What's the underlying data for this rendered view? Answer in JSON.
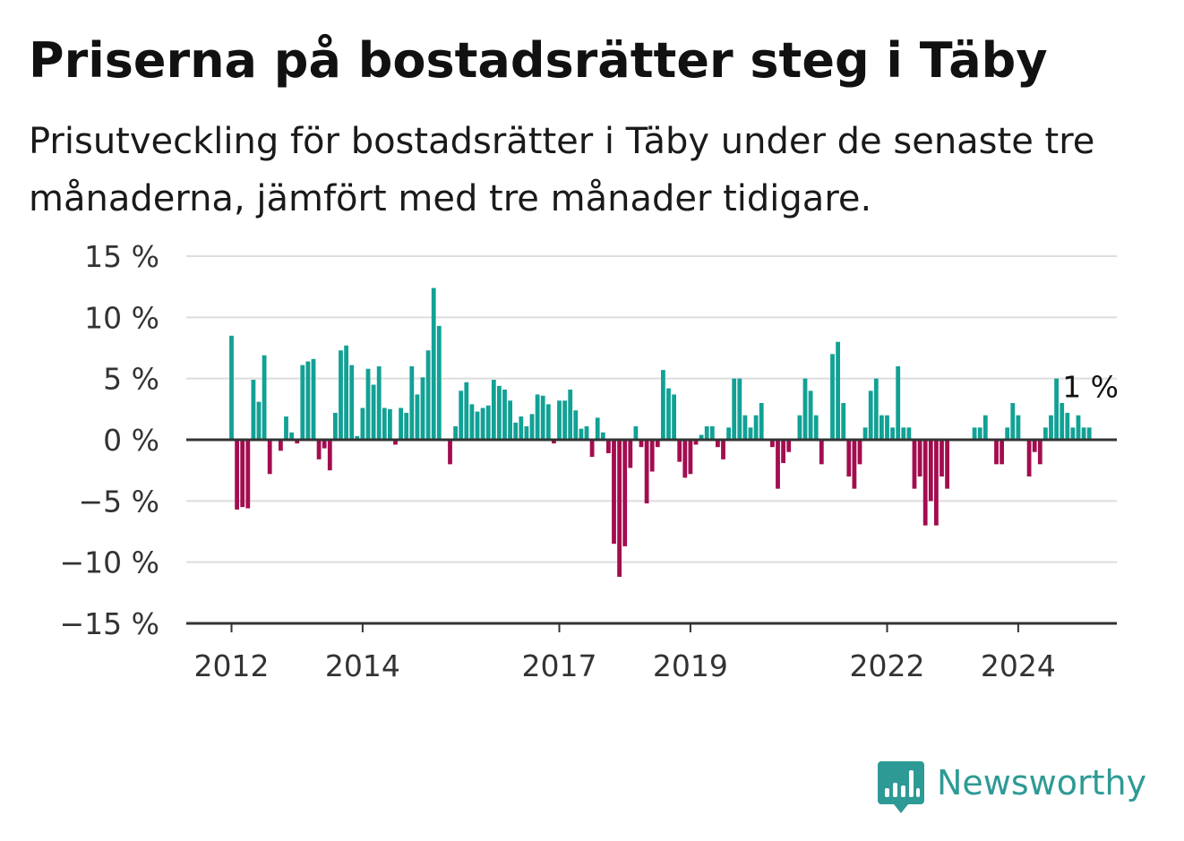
{
  "header": {
    "title": "Priserna på bostadsrätter steg i Täby",
    "subtitle": "Prisutveckling för bostadsrätter i Täby under de senaste tre månaderna, jämfört med tre månader tidigare."
  },
  "brand": {
    "name": "Newsworthy",
    "color": "#2e9a95"
  },
  "colors": {
    "positive": "#12a195",
    "negative": "#a30d4f",
    "grid": "#dddddd",
    "axis": "#333333",
    "text": "#333333"
  },
  "chart_data": {
    "type": "bar",
    "title": "Priserna på bostadsrätter steg i Täby",
    "xlabel": "",
    "ylabel": "",
    "ylim": [
      -15,
      15
    ],
    "yticks": [
      {
        "value": 15,
        "label": "15 %"
      },
      {
        "value": 10,
        "label": "10 %"
      },
      {
        "value": 5,
        "label": "5 %"
      },
      {
        "value": 0,
        "label": "0 %"
      },
      {
        "value": -5,
        "label": "−5 %"
      },
      {
        "value": -10,
        "label": "−10 %"
      },
      {
        "value": -15,
        "label": "−15 %"
      }
    ],
    "xticks": [
      {
        "index": 0,
        "label": "2012"
      },
      {
        "index": 24,
        "label": "2014"
      },
      {
        "index": 60,
        "label": "2017"
      },
      {
        "index": 84,
        "label": "2019"
      },
      {
        "index": 120,
        "label": "2022"
      },
      {
        "index": 144,
        "label": "2024"
      }
    ],
    "grid": true,
    "bar_color_rule": "positive values teal, negative values crimson",
    "last_value_label": "1 %",
    "start": "2012-01",
    "frequency": "monthly",
    "values": [
      8.5,
      -5.7,
      -5.5,
      -5.6,
      4.9,
      3.1,
      6.9,
      -2.8,
      0,
      -0.9,
      1.9,
      0.6,
      -0.3,
      6.1,
      6.4,
      6.6,
      -1.6,
      -0.7,
      -2.5,
      2.2,
      7.3,
      7.7,
      6.1,
      0.3,
      2.6,
      5.8,
      4.5,
      6.0,
      2.6,
      2.5,
      -0.4,
      2.6,
      2.2,
      6.0,
      3.7,
      5.1,
      7.3,
      12.4,
      9.3,
      0,
      -2.0,
      1.1,
      4.0,
      4.7,
      2.9,
      2.3,
      2.6,
      2.8,
      4.9,
      4.4,
      4.1,
      3.2,
      1.4,
      1.9,
      1.1,
      2.1,
      3.7,
      3.6,
      2.9,
      -0.3,
      3.2,
      3.2,
      4.1,
      2.4,
      0.9,
      1.1,
      -1.4,
      1.8,
      0.6,
      -1.1,
      -8.5,
      -11.2,
      -8.7,
      -2.3,
      1.1,
      -0.6,
      -5.2,
      -2.6,
      -0.6,
      5.7,
      4.2,
      3.7,
      -1.8,
      -3.1,
      -2.8,
      -0.4,
      0.4,
      1.1,
      1.1,
      -0.6,
      -1.6,
      1.0,
      5.0,
      5.0,
      2.0,
      1.0,
      2.0,
      3.0,
      0,
      -0.6,
      -4.0,
      -1.9,
      -1.0,
      0,
      2.0,
      5.0,
      4.0,
      2.0,
      -2.0,
      0,
      7.0,
      8.0,
      3.0,
      -3.0,
      -4.0,
      -2.0,
      1.0,
      4.0,
      5.0,
      2.0,
      2.0,
      1.0,
      6.0,
      1.0,
      1.0,
      -4.0,
      -3.0,
      -7.0,
      -5.0,
      -7.0,
      -3.0,
      -4.0,
      0,
      0,
      0,
      0,
      1.0,
      1.0,
      2.0,
      0,
      -2.0,
      -2.0,
      1.0,
      3.0,
      2.0,
      0,
      -3.0,
      -1.0,
      -2.0,
      1.0,
      2.0,
      5.0,
      3.0,
      2.2,
      1.0,
      2.0,
      1.0,
      1.0
    ]
  }
}
